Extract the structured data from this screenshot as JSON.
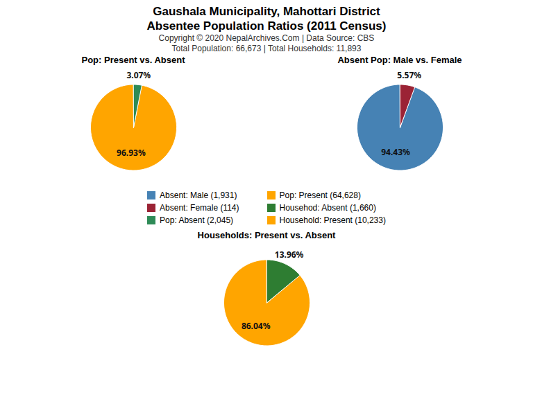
{
  "title": "Gaushala Municipality, Mahottari District",
  "subtitle": "Absentee Population Ratios (2011 Census)",
  "annotations": [
    "Copyright © 2020 NepalArchives.Com | Data Source: CBS",
    "Total Population: 66,673 | Total Households: 11,893"
  ],
  "series": [
    {
      "name": "Absent: Male (1,931)",
      "color": "#4682B4"
    },
    {
      "name": "Absent: Female (114)",
      "color": "#9B2335"
    },
    {
      "name": "Pop: Absent (2,045)",
      "color": "#2E8B57"
    },
    {
      "name": "Pop: Present (64,628)",
      "color": "#FFA500"
    },
    {
      "name": "Househod: Absent (1,660)",
      "color": "#2E7D32"
    },
    {
      "name": "Household: Present (10,233)",
      "color": "#FFA500"
    }
  ],
  "chart_data": [
    {
      "type": "pie",
      "title": "Pop: Present vs. Absent",
      "values": [
        96.93,
        3.07
      ],
      "value_labels": [
        "96.93%",
        "3.07%"
      ],
      "colors": [
        "#FFA500",
        "#2E8B57"
      ],
      "data_labels": true
    },
    {
      "type": "pie",
      "title": "Absent Pop: Male vs. Female",
      "values": [
        94.43,
        5.57
      ],
      "value_labels": [
        "94.43%",
        "5.57%"
      ],
      "colors": [
        "#4682B4",
        "#9B2335"
      ],
      "data_labels": true
    },
    {
      "type": "pie",
      "title": "Households: Present vs. Absent",
      "values": [
        86.04,
        13.96
      ],
      "value_labels": [
        "86.04%",
        "13.96%"
      ],
      "colors": [
        "#FFA500",
        "#2E7D32"
      ],
      "data_labels": true
    }
  ]
}
